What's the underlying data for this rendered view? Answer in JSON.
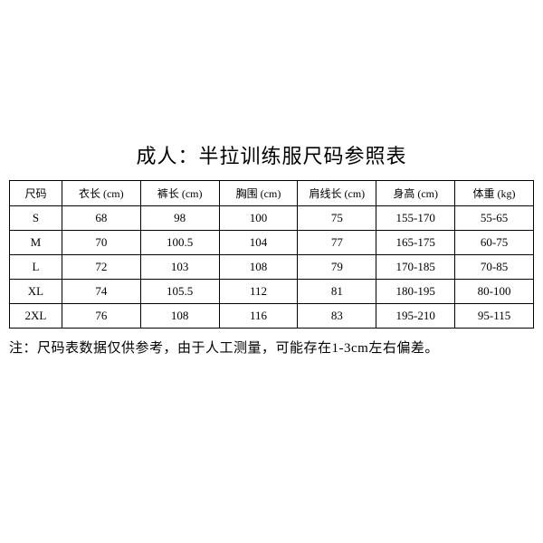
{
  "title": "成人：半拉训练服尺码参照表",
  "table": {
    "type": "table",
    "columns": [
      "尺码",
      "衣长 (cm)",
      "裤长 (cm)",
      "胸围 (cm)",
      "肩线长 (cm)",
      "身高 (cm)",
      "体重 (kg)"
    ],
    "rows": [
      [
        "S",
        "68",
        "98",
        "100",
        "75",
        "155-170",
        "55-65"
      ],
      [
        "M",
        "70",
        "100.5",
        "104",
        "77",
        "165-175",
        "60-75"
      ],
      [
        "L",
        "72",
        "103",
        "108",
        "79",
        "170-185",
        "70-85"
      ],
      [
        "XL",
        "74",
        "105.5",
        "112",
        "81",
        "180-195",
        "80-100"
      ],
      [
        "2XL",
        "76",
        "108",
        "116",
        "83",
        "195-210",
        "95-115"
      ]
    ],
    "border_color": "#000000",
    "background_color": "#ffffff",
    "header_fontsize": 12,
    "cell_fontsize": 13,
    "text_color": "#000000"
  },
  "footnote": "注：尺码表数据仅供参考，由于人工测量，可能存在1-3cm左右偏差。",
  "title_fontsize": 22,
  "footnote_fontsize": 15
}
